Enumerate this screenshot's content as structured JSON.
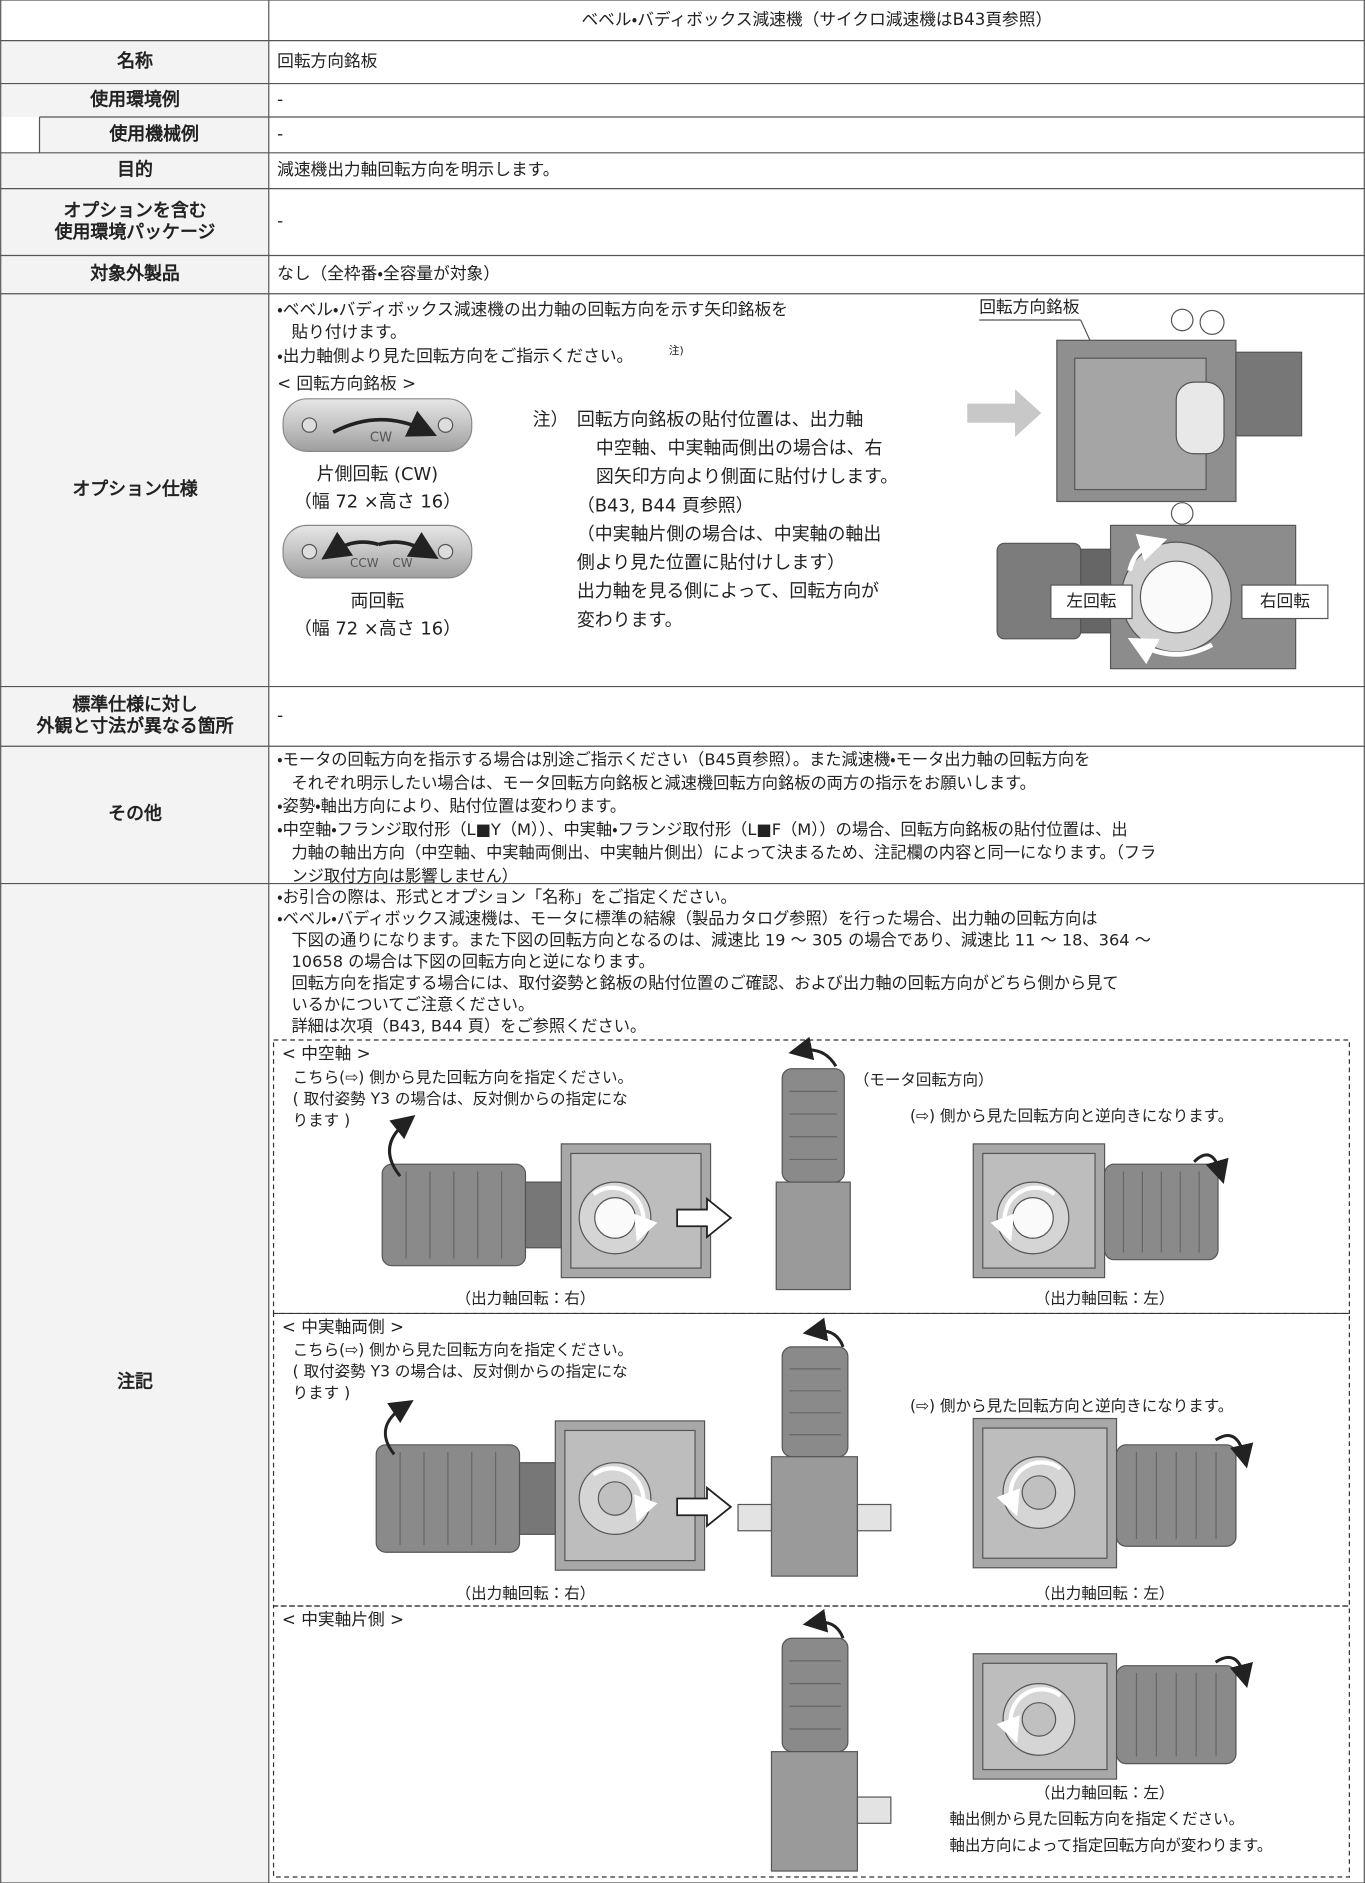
{
  "header": {
    "title": "ベベル・バディボックス減速機（サイクロ減速機はB43頁参照）"
  },
  "rows": [
    {
      "label": [
        "名称"
      ],
      "value": "回転方向銘板"
    },
    {
      "label": [
        "使用環境例"
      ],
      "value": "-"
    },
    {
      "label": [
        "使用機械例"
      ],
      "value": "-"
    },
    {
      "label": [
        "目的"
      ],
      "value": "減速機出力軸回転方向を明示します。"
    },
    {
      "label": [
        "オプションを含む",
        "使用環境パッケージ"
      ],
      "value": "-"
    },
    {
      "label": [
        "対象外製品"
      ],
      "value": "なし（全枠番・全容量が対象）"
    }
  ],
  "option_spec": {
    "label": "オプション仕様",
    "lines": [
      "・ベベル・バディボックス減速機の出力軸の回転方向を示す矢印銘板を",
      "貼り付けます。",
      "・出力軸側より見た回転方向をご指示ください。"
    ],
    "note_ref": "注)",
    "plate_heading": "< 回転方向銘板 >",
    "plates": [
      {
        "marks": [
          "CW"
        ],
        "name": "片側回転 (CW)",
        "size": "（幅 72 ×高さ 16）"
      },
      {
        "marks": [
          "CCW",
          "CW"
        ],
        "name": "両回転",
        "size": "（幅 72 ×高さ 16）"
      }
    ],
    "note_label": "注）",
    "note_lines": [
      "回転方向銘板の貼付位置は、出力軸",
      "中空軸、中実軸両側出の場合は、右",
      "図矢印方向より側面に貼付けします。",
      "（B43, B44 頁参照）",
      "（中実軸片側の場合は、中実軸の軸出",
      "側より見た位置に貼付けします）",
      "出力軸を見る側によって、回転方向が",
      "変わります。"
    ],
    "figure_label": "回転方向銘板",
    "left": "左回転",
    "right": "右回転"
  },
  "standard_diff": {
    "label": [
      "標準仕様に対し",
      "外観と寸法が異なる箇所"
    ],
    "value": "-"
  },
  "other": {
    "label": "その他",
    "lines": [
      "・モータの回転方向を指示する場合は別途ご指示ください（B45頁参照）。また減速機・モータ出力軸の回転方向を",
      "それぞれ明示したい場合は、モータ回転方向銘板と減速機回転方向銘板の両方の指示をお願いします。",
      "・姿勢・軸出方向により、貼付位置は変わります。",
      "・中空軸・フランジ取付形（L■Y（M））、中実軸・フランジ取付形（L■F（M））の場合、回転方向銘板の貼付位置は、出",
      "力軸の軸出方向（中空軸、中実軸両側出、中実軸片側出）によって決まるため、注記欄の内容と同一になります。（フラ",
      "ンジ取付方向は影響しません）"
    ]
  },
  "remarks": {
    "label": "注記",
    "lines": [
      "・お引合の際は、形式とオプション「名称」をご指定ください。",
      "・ベベル・バディボックス減速機は、モータに標準の結線（製品カタログ参照）を行った場合、出力軸の回転方向は",
      "下図の通りになります。また下図の回転方向となるのは、減速比 19 〜 305 の場合であり、減速比 11 〜 18、364 〜",
      "10658 の場合は下図の回転方向と逆になります。",
      "回転方向を指定する場合には、取付姿勢と銘板の貼付位置のご確認、および出力軸の回転方向がどちら側から見て",
      "いるかについてご注意ください。",
      "詳細は次項（B43, B44 頁）をご参照ください。"
    ],
    "sections": [
      {
        "title": "< 中空軸 >",
        "instructions": [
          "こちら(⇨) 側から見た回転方向を指定ください。",
          "( 取付姿勢 Y3 の場合は、反対側からの指定にな",
          "ります )"
        ],
        "motor_direction": "（モータ回転方向）",
        "reverse": "(⇨) 側から見た回転方向と逆向きになります。",
        "captions": [
          "（出力軸回転：右）",
          "（出力軸回転：左）"
        ]
      },
      {
        "title": "< 中実軸両側 >",
        "instructions": [
          "こちら(⇨) 側から見た回転方向を指定ください。",
          "( 取付姿勢 Y3 の場合は、反対側からの指定にな",
          "ります )"
        ],
        "reverse": "(⇨) 側から見た回転方向と逆向きになります。",
        "captions": [
          "（出力軸回転：右）",
          "（出力軸回転：左）"
        ]
      },
      {
        "title": "< 中実軸片側 >",
        "captions": [
          "（出力軸回転：左）"
        ],
        "instructions": [
          "軸出側から見た回転方向を指定ください。",
          "軸出方向によって指定回転方向が変わります。"
        ]
      }
    ]
  }
}
